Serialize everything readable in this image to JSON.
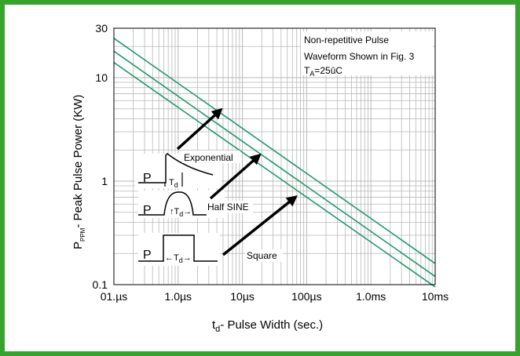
{
  "chart_data": {
    "type": "line",
    "scale": "log-log",
    "grid": true,
    "xlabel": {
      "main": "t",
      "sub": "d",
      "rest": "- Pulse Width (sec.)"
    },
    "ylabel": {
      "main": "P",
      "sub": "PPM",
      "rest": "- Peak Pulse Power (KW)"
    },
    "xlim": [
      "0.1µs",
      "10ms"
    ],
    "ylim": [
      0.1,
      30
    ],
    "x_ticks": [
      {
        "label": "01.µs"
      },
      {
        "label": "1.0µs"
      },
      {
        "label": "10µs"
      },
      {
        "label": "100µs"
      },
      {
        "label": "1.0ms"
      },
      {
        "label": "10ms"
      }
    ],
    "y_ticks": [
      {
        "label": "30",
        "value": 30
      },
      {
        "label": "10",
        "value": 10
      },
      {
        "label": "1",
        "value": 1
      },
      {
        "label": "0.1",
        "value": 0.1
      }
    ],
    "series": [
      {
        "color": "#1f9a6b",
        "x_s": [
          1e-07,
          0.01
        ],
        "y_kw": [
          24,
          0.16
        ]
      },
      {
        "color": "#1f9a6b",
        "x_s": [
          1e-07,
          0.01
        ],
        "y_kw": [
          18,
          0.12
        ]
      },
      {
        "color": "#1f9a6b",
        "x_s": [
          1e-07,
          0.01
        ],
        "y_kw": [
          14,
          0.095
        ]
      }
    ],
    "annotation": {
      "line1": "Non-repetitive Pulse",
      "line2": "Waveform Shown in Fig. 3",
      "line3_main": "T",
      "line3_sub": "A",
      "line3_rest": "=25ûC"
    },
    "waveforms": [
      {
        "name": "Exponential",
        "p_label": "P",
        "td_label": "T",
        "td_sub": "d"
      },
      {
        "name": "Half SINE",
        "p_label": "P",
        "td_label": "T",
        "td_sub": "d"
      },
      {
        "name": "Square",
        "p_label": "P",
        "td_label": "T",
        "td_sub": "d"
      }
    ]
  }
}
